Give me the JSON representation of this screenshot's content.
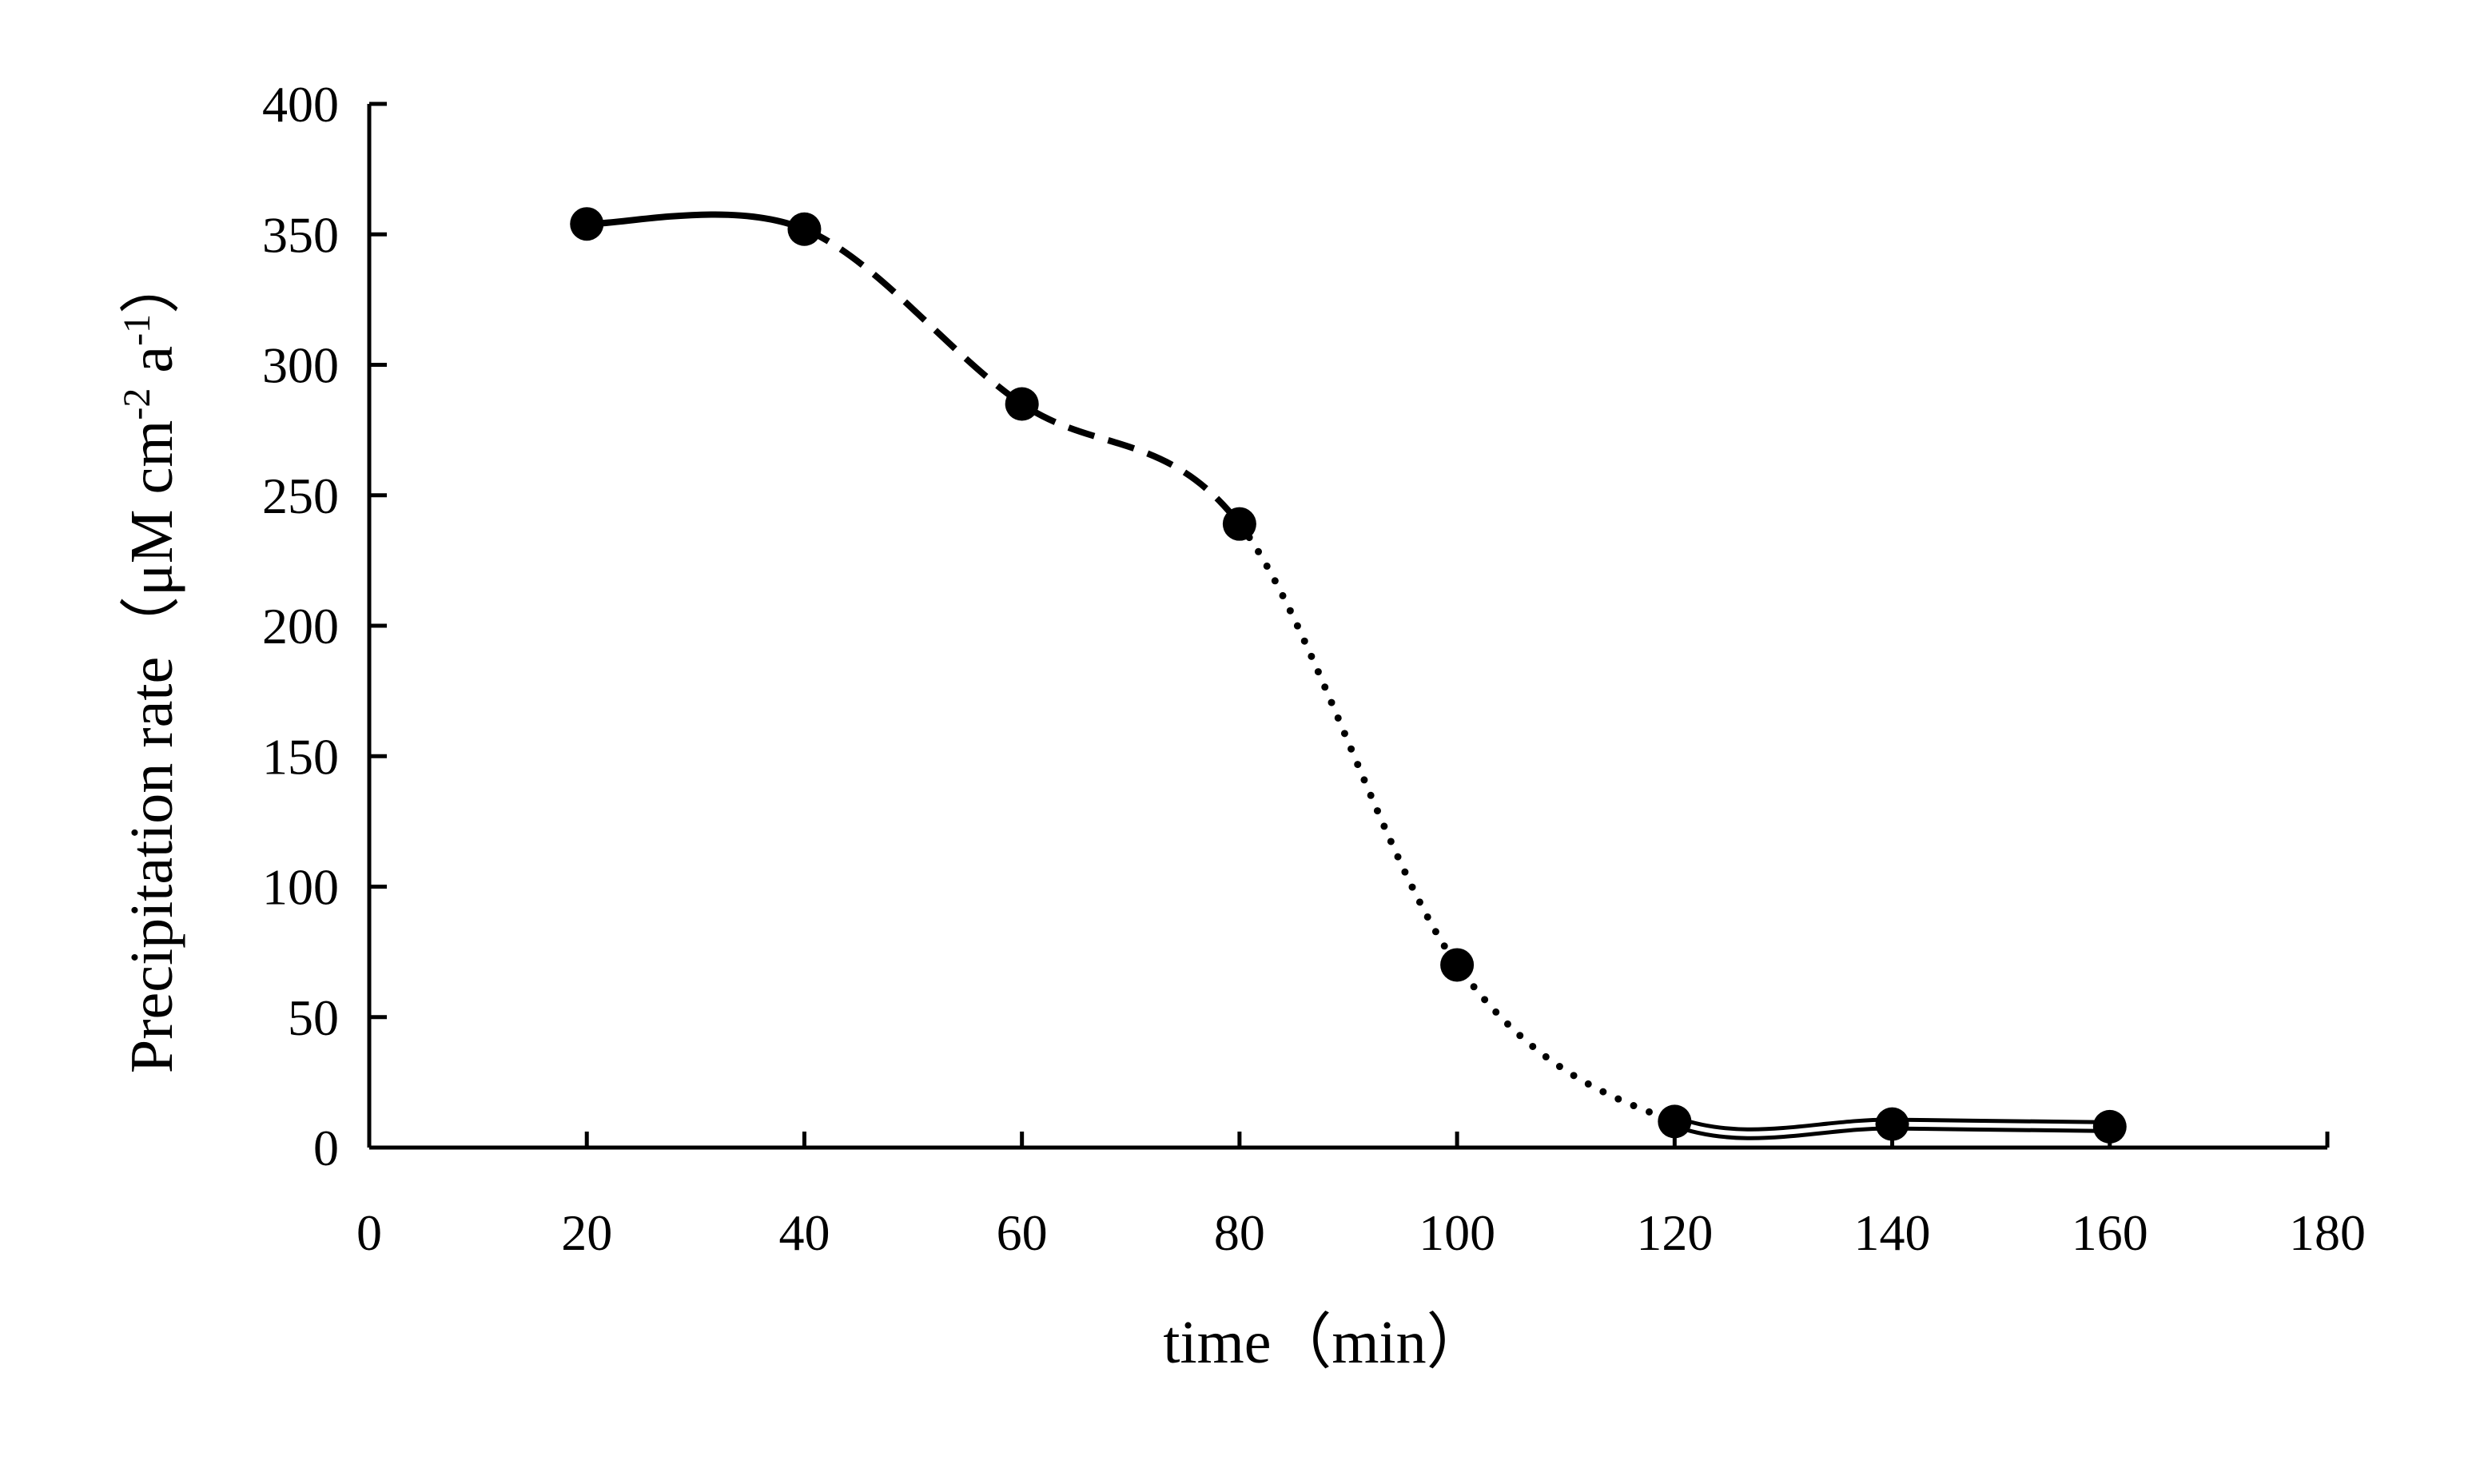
{
  "chart_data": {
    "type": "line",
    "title": "",
    "xlabel": "time（min）",
    "ylabel_main": "Precipitation rate（μM cm",
    "ylabel_sup1": "-2",
    "ylabel_mid": " a",
    "ylabel_sup2": "-1",
    "ylabel_end": "）",
    "xlim": [
      0,
      180
    ],
    "ylim": [
      0,
      400
    ],
    "xticks": [
      "0",
      "20",
      "40",
      "60",
      "80",
      "100",
      "120",
      "140",
      "160",
      "180"
    ],
    "yticks": [
      "0",
      "50",
      "100",
      "150",
      "200",
      "250",
      "300",
      "350",
      "400"
    ],
    "grid": false,
    "legend": "none",
    "points": [
      {
        "x": 20,
        "y": 354
      },
      {
        "x": 40,
        "y": 352
      },
      {
        "x": 60,
        "y": 285
      },
      {
        "x": 80,
        "y": 239
      },
      {
        "x": 100,
        "y": 70
      },
      {
        "x": 120,
        "y": 10
      },
      {
        "x": 140,
        "y": 9
      },
      {
        "x": 160,
        "y": 8
      }
    ],
    "segments": [
      {
        "style": "solid",
        "from": 0,
        "to": 1
      },
      {
        "style": "dashed",
        "from": 1,
        "to": 3
      },
      {
        "style": "dotted",
        "from": 3,
        "to": 5
      },
      {
        "style": "double",
        "from": 5,
        "to": 7
      }
    ],
    "colors": {
      "line": "#000000",
      "marker": "#000000"
    }
  }
}
